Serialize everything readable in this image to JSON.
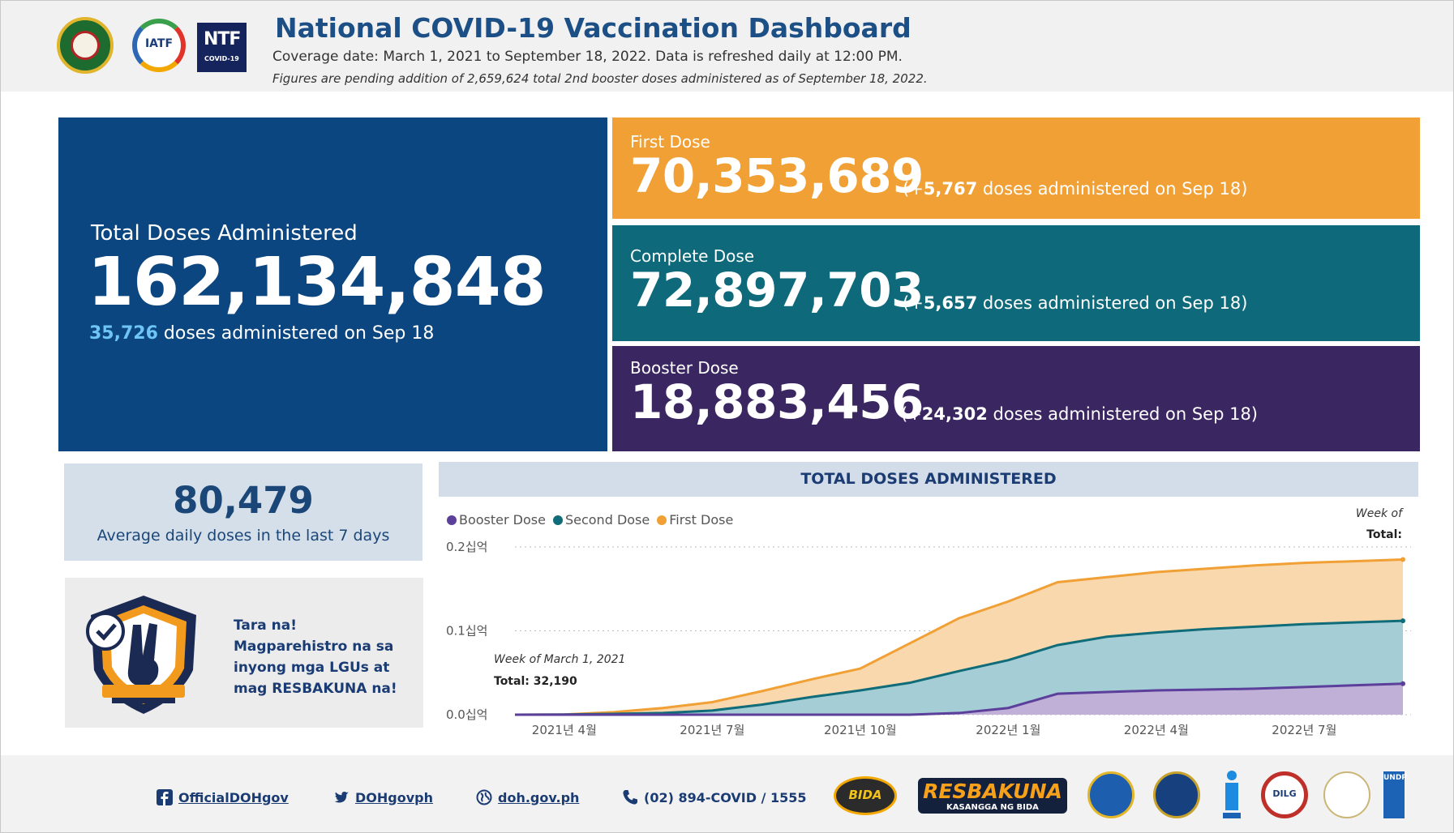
{
  "header": {
    "title": "National COVID-19 Vaccination Dashboard",
    "subtitle": "Coverage date: March 1, 2021 to September 18, 2022. Data is refreshed daily at 12:00 PM.",
    "note": "Figures are pending addition of 2,659,624 total 2nd booster doses administered as of September 18, 2022.",
    "logo_iatf": "IATF",
    "logo_ntf": "NTF",
    "logo_ntf_sub": "COVID-19"
  },
  "total": {
    "label": "Total Doses Administered",
    "value": "162,134,848",
    "daily_count": "35,726",
    "daily_text": " doses administered on Sep 18"
  },
  "first_dose": {
    "label": "First Dose",
    "value": "70,353,689",
    "delta_prefix": "(+",
    "delta": "5,767",
    "delta_suffix": " doses administered on Sep 18)"
  },
  "complete_dose": {
    "label": "Complete Dose",
    "value": "72,897,703",
    "delta_prefix": "(+",
    "delta": "5,657",
    "delta_suffix": " doses administered on Sep 18)"
  },
  "booster_dose": {
    "label": "Booster Dose",
    "value": "18,883,456",
    "delta_prefix": "(+",
    "delta": "24,302",
    "delta_suffix": " doses administered on Sep 18)"
  },
  "average": {
    "value": "80,479",
    "label": "Average daily doses in the last 7 days"
  },
  "promo": {
    "text": "Tara na! Magparehistro na sa inyong mga LGUs at mag RESBAKUNA na!"
  },
  "chart_data": {
    "type": "area",
    "title": "TOTAL DOSES ADMINISTERED",
    "x_labels": [
      "2021년 4월",
      "2021년 7월",
      "2021년 10월",
      "2022년 1월",
      "2022년 4월",
      "2022년 7월"
    ],
    "x": [
      "2021-03",
      "2021-04",
      "2021-05",
      "2021-06",
      "2021-07",
      "2021-08",
      "2021-09",
      "2021-10",
      "2021-11",
      "2021-12",
      "2022-01",
      "2022-02",
      "2022-03",
      "2022-04",
      "2022-05",
      "2022-06",
      "2022-07",
      "2022-08",
      "2022-09"
    ],
    "series": [
      {
        "name": "Booster Dose",
        "color": "#5b3f9a",
        "fill": "#c0b0d8",
        "values": [
          0,
          0,
          0,
          0,
          0,
          0,
          0,
          0,
          0,
          0.002,
          0.008,
          0.025,
          0.027,
          0.029,
          0.03,
          0.031,
          0.033,
          0.035,
          0.037
        ]
      },
      {
        "name": "Second Dose",
        "color": "#0f6c78",
        "fill": "#a4cdd6",
        "values": [
          0,
          0.0003,
          0.001,
          0.002,
          0.005,
          0.012,
          0.021,
          0.029,
          0.038,
          0.052,
          0.065,
          0.083,
          0.093,
          0.098,
          0.102,
          0.105,
          0.108,
          0.11,
          0.112
        ]
      },
      {
        "name": "First Dose",
        "color": "#f0a035",
        "fill": "#f9d8ad",
        "values": [
          0,
          0.0003,
          0.003,
          0.008,
          0.015,
          0.028,
          0.042,
          0.055,
          0.085,
          0.115,
          0.135,
          0.158,
          0.164,
          0.17,
          0.174,
          0.178,
          0.181,
          0.183,
          0.185
        ]
      }
    ],
    "y_ticks": [
      "0.0십억",
      "0.1십억",
      "0.2십억"
    ],
    "ylim": [
      0,
      0.2
    ],
    "legend": "top-left",
    "tooltip_header_week": "Week of",
    "tooltip_header_total": "Total:",
    "tooltip_week": "Week of March 1, 2021",
    "tooltip_total": "Total: 32,190"
  },
  "footer": {
    "facebook": "OfficialDOHgov",
    "twitter": "DOHgovph",
    "website": "doh.gov.ph",
    "phone": "(02) 894-COVID / 1555",
    "bida": "BIDA",
    "resbakuna": "RESBAKUNA",
    "resbakuna_sub": "KASANGGA NG BIDA",
    "dilg": "DILG",
    "undp": "UNDP"
  }
}
